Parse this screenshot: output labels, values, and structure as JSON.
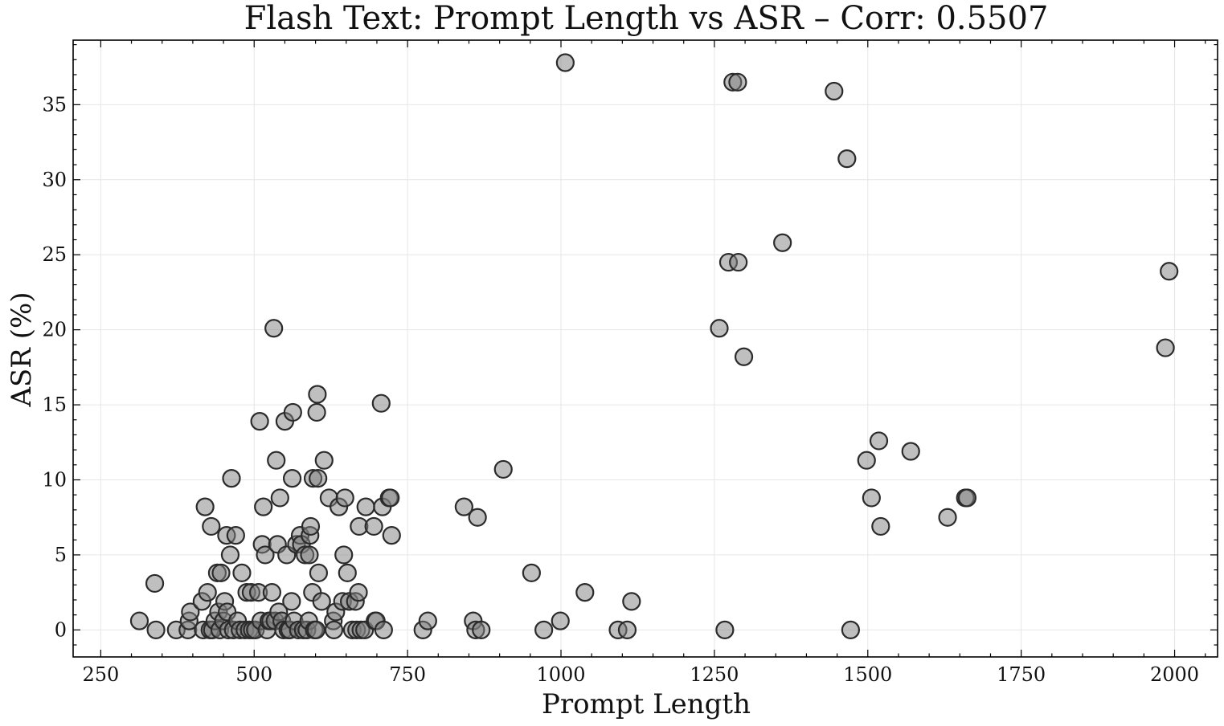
{
  "chart_data": {
    "type": "scatter",
    "title": "Flash Text: Prompt Length vs ASR – Corr: 0.5507",
    "xlabel": "Prompt Length",
    "ylabel": "ASR (%)",
    "xlim": [
      205,
      2070
    ],
    "ylim": [
      -1.8,
      39.3
    ],
    "xticks": [
      250,
      500,
      750,
      1000,
      1250,
      1500,
      1750,
      2000
    ],
    "yticks": [
      0,
      5,
      10,
      15,
      20,
      25,
      30,
      35
    ],
    "grid": true,
    "series": [
      {
        "marker_color": "#808080",
        "points": [
          [
            313,
            0.6
          ],
          [
            338,
            3.1
          ],
          [
            340,
            0.0
          ],
          [
            373,
            0.0
          ],
          [
            392,
            0.0
          ],
          [
            394,
            0.6
          ],
          [
            396,
            1.2
          ],
          [
            415,
            1.9
          ],
          [
            417,
            0.0
          ],
          [
            420,
            8.2
          ],
          [
            424,
            2.5
          ],
          [
            428,
            0.0
          ],
          [
            430,
            6.9
          ],
          [
            432,
            0.0
          ],
          [
            436,
            0.6
          ],
          [
            440,
            3.8
          ],
          [
            442,
            1.2
          ],
          [
            444,
            0.0
          ],
          [
            446,
            3.8
          ],
          [
            450,
            0.6
          ],
          [
            452,
            1.9
          ],
          [
            455,
            6.3
          ],
          [
            456,
            1.2
          ],
          [
            458,
            0.0
          ],
          [
            461,
            5.0
          ],
          [
            463,
            10.1
          ],
          [
            466,
            0.0
          ],
          [
            470,
            6.3
          ],
          [
            473,
            0.6
          ],
          [
            477,
            0.0
          ],
          [
            480,
            3.8
          ],
          [
            485,
            0.0
          ],
          [
            488,
            2.5
          ],
          [
            492,
            0.0
          ],
          [
            495,
            2.5
          ],
          [
            497,
            0.0
          ],
          [
            502,
            0.0
          ],
          [
            507,
            2.5
          ],
          [
            509,
            13.9
          ],
          [
            511,
            0.6
          ],
          [
            513,
            5.7
          ],
          [
            515,
            8.2
          ],
          [
            518,
            5.0
          ],
          [
            521,
            0.0
          ],
          [
            524,
            0.6
          ],
          [
            527,
            0.6
          ],
          [
            529,
            2.5
          ],
          [
            532,
            20.1
          ],
          [
            534,
            0.6
          ],
          [
            536,
            11.3
          ],
          [
            538,
            5.7
          ],
          [
            540,
            1.2
          ],
          [
            542,
            8.8
          ],
          [
            545,
            0.6
          ],
          [
            548,
            0.0
          ],
          [
            550,
            13.9
          ],
          [
            553,
            5.0
          ],
          [
            555,
            0.0
          ],
          [
            558,
            0.0
          ],
          [
            561,
            1.9
          ],
          [
            562,
            10.1
          ],
          [
            563,
            14.5
          ],
          [
            565,
            0.6
          ],
          [
            569,
            5.7
          ],
          [
            572,
            0.0
          ],
          [
            575,
            6.3
          ],
          [
            577,
            5.7
          ],
          [
            580,
            0.0
          ],
          [
            583,
            5.0
          ],
          [
            586,
            0.0
          ],
          [
            589,
            0.6
          ],
          [
            590,
            5.0
          ],
          [
            591,
            6.3
          ],
          [
            592,
            6.9
          ],
          [
            595,
            2.5
          ],
          [
            596,
            10.1
          ],
          [
            598,
            0.0
          ],
          [
            601,
            0.0
          ],
          [
            602,
            14.5
          ],
          [
            603,
            15.7
          ],
          [
            604,
            10.1
          ],
          [
            605,
            3.8
          ],
          [
            610,
            1.9
          ],
          [
            614,
            11.3
          ],
          [
            622,
            8.8
          ],
          [
            629,
            0.6
          ],
          [
            630,
            0.0
          ],
          [
            633,
            1.2
          ],
          [
            638,
            8.2
          ],
          [
            644,
            1.9
          ],
          [
            646,
            5.0
          ],
          [
            648,
            8.8
          ],
          [
            652,
            3.8
          ],
          [
            655,
            1.9
          ],
          [
            660,
            0.0
          ],
          [
            665,
            1.9
          ],
          [
            667,
            0.0
          ],
          [
            670,
            2.5
          ],
          [
            671,
            6.9
          ],
          [
            674,
            0.0
          ],
          [
            680,
            0.0
          ],
          [
            682,
            8.2
          ],
          [
            695,
            6.9
          ],
          [
            697,
            0.6
          ],
          [
            699,
            0.6
          ],
          [
            707,
            15.1
          ],
          [
            709,
            8.2
          ],
          [
            711,
            0.0
          ],
          [
            720,
            8.8
          ],
          [
            722,
            8.8
          ],
          [
            724,
            6.3
          ],
          [
            775,
            0.0
          ],
          [
            783,
            0.6
          ],
          [
            842,
            8.2
          ],
          [
            857,
            0.6
          ],
          [
            861,
            0.0
          ],
          [
            864,
            7.5
          ],
          [
            870,
            0.0
          ],
          [
            906,
            10.7
          ],
          [
            952,
            3.8
          ],
          [
            972,
            0.0
          ],
          [
            999,
            0.6
          ],
          [
            1007,
            37.8
          ],
          [
            1039,
            2.5
          ],
          [
            1093,
            0.0
          ],
          [
            1108,
            0.0
          ],
          [
            1115,
            1.9
          ],
          [
            1258,
            20.1
          ],
          [
            1267,
            0.0
          ],
          [
            1273,
            24.5
          ],
          [
            1280,
            36.5
          ],
          [
            1288,
            36.5
          ],
          [
            1289,
            24.5
          ],
          [
            1298,
            18.2
          ],
          [
            1361,
            25.8
          ],
          [
            1445,
            35.9
          ],
          [
            1466,
            31.4
          ],
          [
            1472,
            0.0
          ],
          [
            1498,
            11.3
          ],
          [
            1506,
            8.8
          ],
          [
            1518,
            12.6
          ],
          [
            1521,
            6.9
          ],
          [
            1570,
            11.9
          ],
          [
            1630,
            7.5
          ],
          [
            1659,
            8.8
          ],
          [
            1662,
            8.8
          ],
          [
            1985,
            18.8
          ],
          [
            1991,
            23.9
          ]
        ]
      }
    ]
  }
}
